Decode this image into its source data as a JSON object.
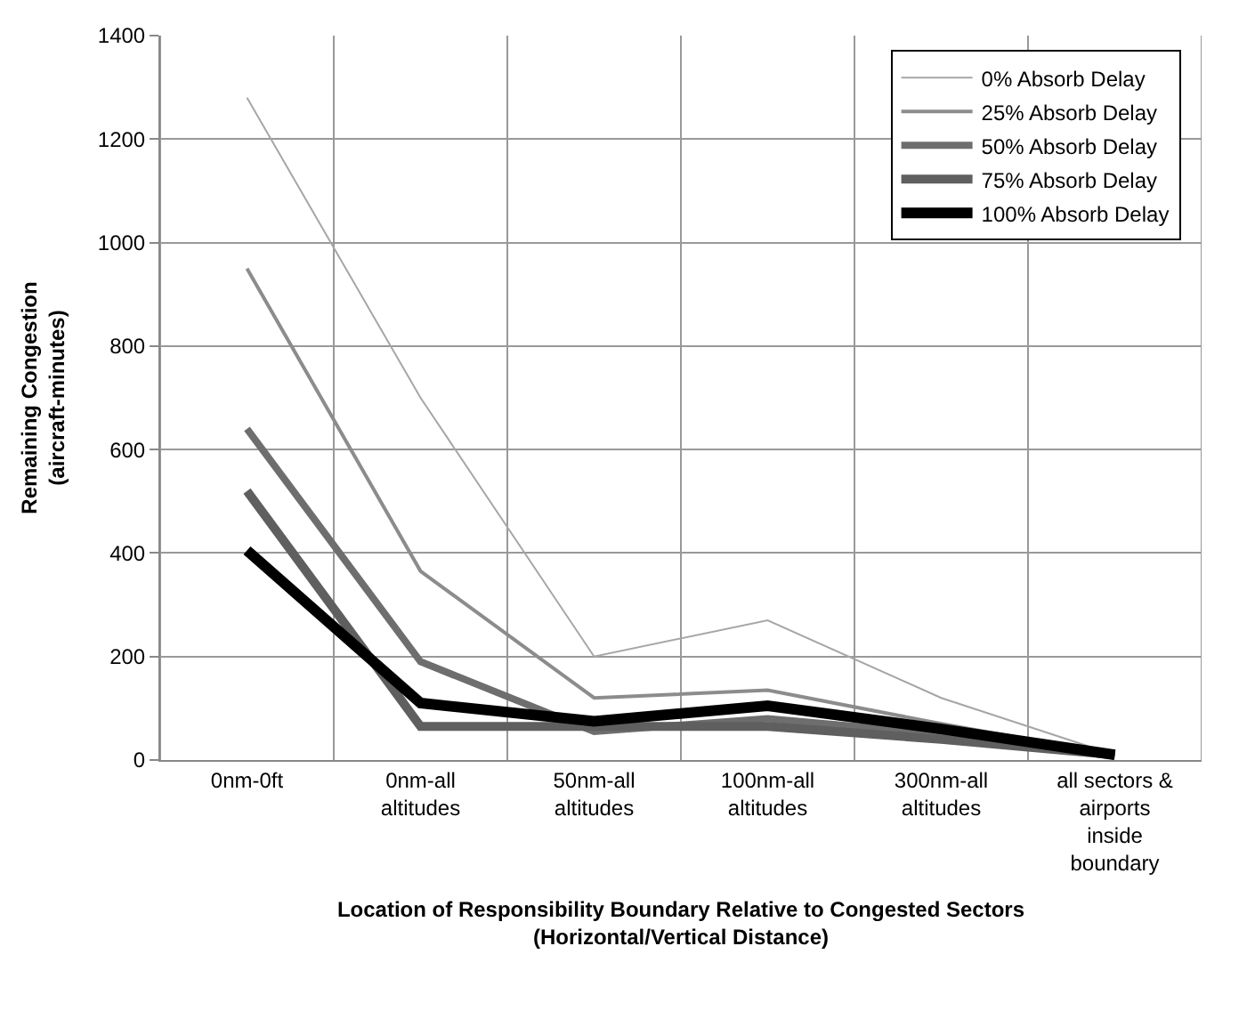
{
  "chart_data": {
    "type": "line",
    "xlabel": "Location of Responsibility Boundary Relative to Congested Sectors\n(Horizontal/Vertical Distance)",
    "ylabel": "Remaining Congestion\n(aircraft-minutes)",
    "categories": [
      "0nm-0ft",
      "0nm-all altitudes",
      "50nm-all altitudes",
      "100nm-all altitudes",
      "300nm-all altitudes",
      "all sectors & airports inside boundary"
    ],
    "series": [
      {
        "name": "0% Absorb Delay",
        "color": "#a6a6a6",
        "values": [
          1280,
          700,
          200,
          270,
          120,
          10
        ]
      },
      {
        "name": "25% Absorb Delay",
        "color": "#8c8c8c",
        "values": [
          950,
          365,
          120,
          135,
          70,
          10
        ]
      },
      {
        "name": "50% Absorb Delay",
        "color": "#6e6e6e",
        "values": [
          640,
          190,
          55,
          80,
          50,
          10
        ]
      },
      {
        "name": "75% Absorb Delay",
        "color": "#5f5f5f",
        "values": [
          520,
          65,
          65,
          65,
          40,
          10
        ]
      },
      {
        "name": "100% Absorb Delay",
        "color": "#000000",
        "values": [
          405,
          110,
          75,
          105,
          60,
          10
        ]
      }
    ],
    "ylim": [
      0,
      1400
    ],
    "yticks": [
      0,
      200,
      400,
      600,
      800,
      1000,
      1200,
      1400
    ],
    "grid": true,
    "legend": "top right",
    "marker": "none",
    "line_style": "solid"
  }
}
